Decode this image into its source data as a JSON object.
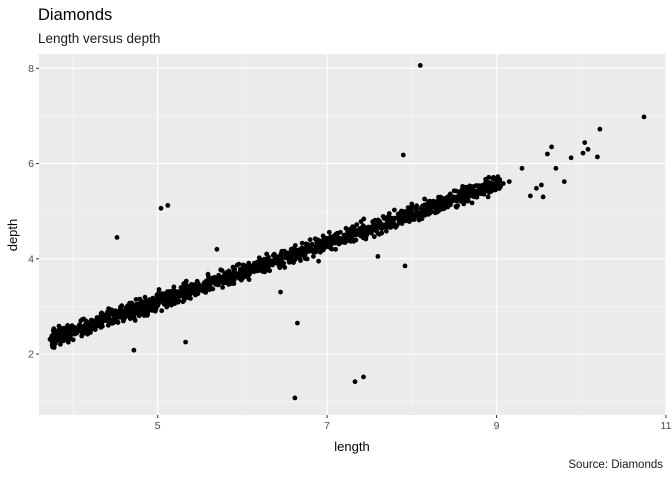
{
  "chart_data": {
    "type": "scatter",
    "title": "Diamonds",
    "subtitle": "Length versus depth",
    "caption": "Source: Diamonds",
    "xlabel": "length",
    "ylabel": "depth",
    "xlim": [
      3.6,
      11.0
    ],
    "ylim": [
      0.72,
      8.3
    ],
    "x_ticks": [
      5,
      7,
      9,
      11
    ],
    "y_ticks": [
      2,
      4,
      6,
      8
    ],
    "grid": true,
    "point_color": "#000000",
    "panel_background": "#ebebeb",
    "trend": {
      "slope": 0.619,
      "intercept": 0.0
    },
    "points": [
      {
        "x": 3.73,
        "y": 2.31
      },
      {
        "x": 3.79,
        "y": 2.34
      },
      {
        "x": 3.85,
        "y": 2.38
      },
      {
        "x": 3.92,
        "y": 2.43
      },
      {
        "x": 3.98,
        "y": 2.47
      },
      {
        "x": 4.04,
        "y": 2.5
      },
      {
        "x": 4.1,
        "y": 2.55
      },
      {
        "x": 4.17,
        "y": 2.58
      },
      {
        "x": 4.24,
        "y": 2.62
      },
      {
        "x": 4.31,
        "y": 2.66
      },
      {
        "x": 4.37,
        "y": 2.71
      },
      {
        "x": 4.43,
        "y": 2.74
      },
      {
        "x": 4.5,
        "y": 2.79
      },
      {
        "x": 4.57,
        "y": 2.83
      },
      {
        "x": 4.63,
        "y": 2.86
      },
      {
        "x": 4.7,
        "y": 2.91
      },
      {
        "x": 4.77,
        "y": 2.95
      },
      {
        "x": 4.84,
        "y": 3.0
      },
      {
        "x": 4.91,
        "y": 3.04
      },
      {
        "x": 4.98,
        "y": 3.08
      },
      {
        "x": 5.05,
        "y": 3.13
      },
      {
        "x": 5.12,
        "y": 3.17
      },
      {
        "x": 5.19,
        "y": 3.21
      },
      {
        "x": 5.26,
        "y": 3.26
      },
      {
        "x": 5.33,
        "y": 3.3
      },
      {
        "x": 5.4,
        "y": 3.34
      },
      {
        "x": 5.47,
        "y": 3.39
      },
      {
        "x": 5.54,
        "y": 3.43
      },
      {
        "x": 5.61,
        "y": 3.47
      },
      {
        "x": 5.68,
        "y": 3.52
      },
      {
        "x": 5.75,
        "y": 3.56
      },
      {
        "x": 5.82,
        "y": 3.6
      },
      {
        "x": 5.89,
        "y": 3.65
      },
      {
        "x": 5.96,
        "y": 3.69
      },
      {
        "x": 6.03,
        "y": 3.73
      },
      {
        "x": 6.1,
        "y": 3.78
      },
      {
        "x": 6.17,
        "y": 3.82
      },
      {
        "x": 6.24,
        "y": 3.86
      },
      {
        "x": 6.31,
        "y": 3.91
      },
      {
        "x": 6.38,
        "y": 3.95
      },
      {
        "x": 6.45,
        "y": 3.99
      },
      {
        "x": 6.52,
        "y": 4.04
      },
      {
        "x": 6.59,
        "y": 4.08
      },
      {
        "x": 6.66,
        "y": 4.12
      },
      {
        "x": 6.73,
        "y": 4.17
      },
      {
        "x": 6.8,
        "y": 4.21
      },
      {
        "x": 6.87,
        "y": 4.25
      },
      {
        "x": 6.94,
        "y": 4.3
      },
      {
        "x": 7.01,
        "y": 4.34
      },
      {
        "x": 7.08,
        "y": 4.38
      },
      {
        "x": 7.15,
        "y": 4.43
      },
      {
        "x": 7.22,
        "y": 4.47
      },
      {
        "x": 7.29,
        "y": 4.51
      },
      {
        "x": 7.36,
        "y": 4.56
      },
      {
        "x": 7.43,
        "y": 4.6
      },
      {
        "x": 7.5,
        "y": 4.64
      },
      {
        "x": 7.57,
        "y": 4.69
      },
      {
        "x": 7.64,
        "y": 4.73
      },
      {
        "x": 7.71,
        "y": 4.77
      },
      {
        "x": 7.78,
        "y": 4.82
      },
      {
        "x": 7.85,
        "y": 4.86
      },
      {
        "x": 7.92,
        "y": 4.9
      },
      {
        "x": 7.99,
        "y": 4.95
      },
      {
        "x": 8.06,
        "y": 4.99
      },
      {
        "x": 8.13,
        "y": 5.03
      },
      {
        "x": 8.2,
        "y": 5.08
      },
      {
        "x": 8.27,
        "y": 5.12
      },
      {
        "x": 8.34,
        "y": 5.16
      },
      {
        "x": 8.41,
        "y": 5.21
      },
      {
        "x": 8.48,
        "y": 5.25
      },
      {
        "x": 8.55,
        "y": 5.29
      },
      {
        "x": 8.62,
        "y": 5.34
      },
      {
        "x": 8.69,
        "y": 5.38
      },
      {
        "x": 8.76,
        "y": 5.42
      },
      {
        "x": 8.83,
        "y": 5.47
      },
      {
        "x": 8.9,
        "y": 5.51
      },
      {
        "x": 8.95,
        "y": 5.55
      },
      {
        "x": 4.2,
        "y": 2.55
      },
      {
        "x": 4.6,
        "y": 2.72
      },
      {
        "x": 5.0,
        "y": 3.25
      },
      {
        "x": 5.3,
        "y": 3.1
      },
      {
        "x": 5.6,
        "y": 3.62
      },
      {
        "x": 5.9,
        "y": 3.48
      },
      {
        "x": 6.2,
        "y": 4.02
      },
      {
        "x": 6.5,
        "y": 3.82
      },
      {
        "x": 6.8,
        "y": 4.4
      },
      {
        "x": 7.1,
        "y": 4.2
      },
      {
        "x": 7.4,
        "y": 4.78
      },
      {
        "x": 7.7,
        "y": 4.58
      },
      {
        "x": 8.0,
        "y": 5.15
      },
      {
        "x": 8.3,
        "y": 4.98
      },
      {
        "x": 8.6,
        "y": 5.52
      },
      {
        "x": 8.9,
        "y": 5.3
      },
      {
        "x": 9.08,
        "y": 5.58
      },
      {
        "x": 9.15,
        "y": 5.62
      },
      {
        "x": 9.3,
        "y": 5.9
      },
      {
        "x": 9.4,
        "y": 5.32
      },
      {
        "x": 9.47,
        "y": 5.48
      },
      {
        "x": 9.53,
        "y": 5.55
      },
      {
        "x": 9.55,
        "y": 5.3
      },
      {
        "x": 9.6,
        "y": 6.2
      },
      {
        "x": 9.65,
        "y": 6.35
      },
      {
        "x": 9.7,
        "y": 5.9
      },
      {
        "x": 9.8,
        "y": 5.62
      },
      {
        "x": 9.88,
        "y": 6.12
      },
      {
        "x": 10.02,
        "y": 6.22
      },
      {
        "x": 10.04,
        "y": 6.44
      },
      {
        "x": 10.08,
        "y": 6.3
      },
      {
        "x": 10.19,
        "y": 6.14
      },
      {
        "x": 10.22,
        "y": 6.72
      },
      {
        "x": 10.74,
        "y": 6.98
      },
      {
        "x": 8.1,
        "y": 8.06
      },
      {
        "x": 7.9,
        "y": 6.18
      },
      {
        "x": 5.04,
        "y": 5.06
      },
      {
        "x": 5.12,
        "y": 5.12
      },
      {
        "x": 4.52,
        "y": 4.45
      },
      {
        "x": 6.65,
        "y": 2.65
      },
      {
        "x": 6.62,
        "y": 1.08
      },
      {
        "x": 7.33,
        "y": 1.42
      },
      {
        "x": 7.43,
        "y": 1.52
      },
      {
        "x": 4.72,
        "y": 2.08
      },
      {
        "x": 5.33,
        "y": 2.25
      },
      {
        "x": 7.92,
        "y": 3.85
      },
      {
        "x": 6.45,
        "y": 3.3
      },
      {
        "x": 5.7,
        "y": 4.2
      },
      {
        "x": 6.9,
        "y": 3.95
      },
      {
        "x": 7.6,
        "y": 4.05
      }
    ]
  }
}
